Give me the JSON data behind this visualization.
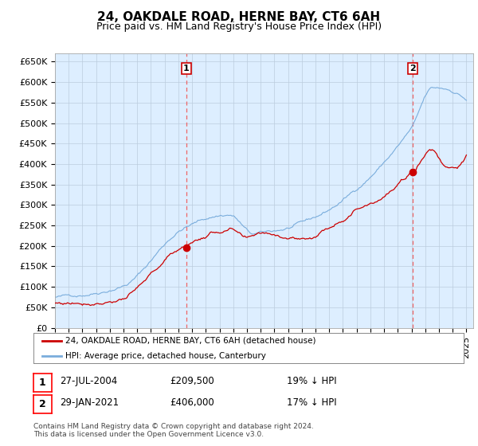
{
  "title": "24, OAKDALE ROAD, HERNE BAY, CT6 6AH",
  "subtitle": "Price paid vs. HM Land Registry's House Price Index (HPI)",
  "ylim": [
    0,
    670000
  ],
  "yticks": [
    0,
    50000,
    100000,
    150000,
    200000,
    250000,
    300000,
    350000,
    400000,
    450000,
    500000,
    550000,
    600000,
    650000
  ],
  "ytick_labels": [
    "£0",
    "£50K",
    "£100K",
    "£150K",
    "£200K",
    "£250K",
    "£300K",
    "£350K",
    "£400K",
    "£450K",
    "£500K",
    "£550K",
    "£600K",
    "£650K"
  ],
  "hpi_color": "#7aaddc",
  "price_color": "#cc0000",
  "vline_color": "#ee6666",
  "chart_bg": "#ddeeff",
  "date1_year": 2004.583,
  "date2_year": 2021.083,
  "price1": 209500,
  "price2": 406000,
  "hpi1": 258642,
  "hpi2": 489156,
  "legend_price_label": "24, OAKDALE ROAD, HERNE BAY, CT6 6AH (detached house)",
  "legend_hpi_label": "HPI: Average price, detached house, Canterbury",
  "note1_date": "27-JUL-2004",
  "note1_price": "£209,500",
  "note1_hpi": "19% ↓ HPI",
  "note2_date": "29-JAN-2021",
  "note2_price": "£406,000",
  "note2_hpi": "17% ↓ HPI",
  "footer": "Contains HM Land Registry data © Crown copyright and database right 2024.\nThis data is licensed under the Open Government Licence v3.0.",
  "background_color": "#ffffff",
  "grid_color": "#bbccdd",
  "title_fontsize": 11,
  "subtitle_fontsize": 9,
  "tick_fontsize": 8,
  "x_start_year": 1995,
  "x_end_year": 2025
}
